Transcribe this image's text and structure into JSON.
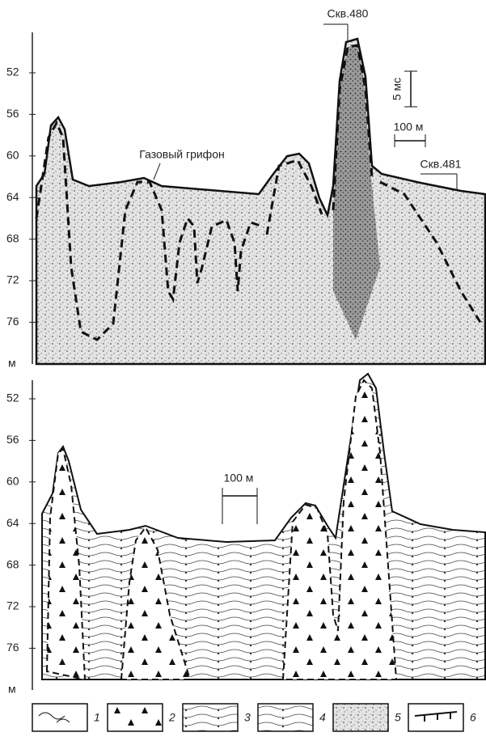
{
  "top_panel": {
    "depth_labels": [
      52,
      56,
      60,
      64,
      68,
      72,
      76
    ],
    "unit": "м",
    "annotations": {
      "well_480": "Скв.480",
      "time_scale": "5 мс",
      "distance_scale": "100 м",
      "gas_griffon": "Газовый грифон",
      "well_481": "Скв.481"
    }
  },
  "bottom_panel": {
    "depth_labels": [
      52,
      56,
      60,
      64,
      68,
      72,
      76
    ],
    "unit": "м",
    "distance_scale": "100 м"
  },
  "legend": [
    1,
    2,
    3,
    4,
    5,
    6
  ]
}
